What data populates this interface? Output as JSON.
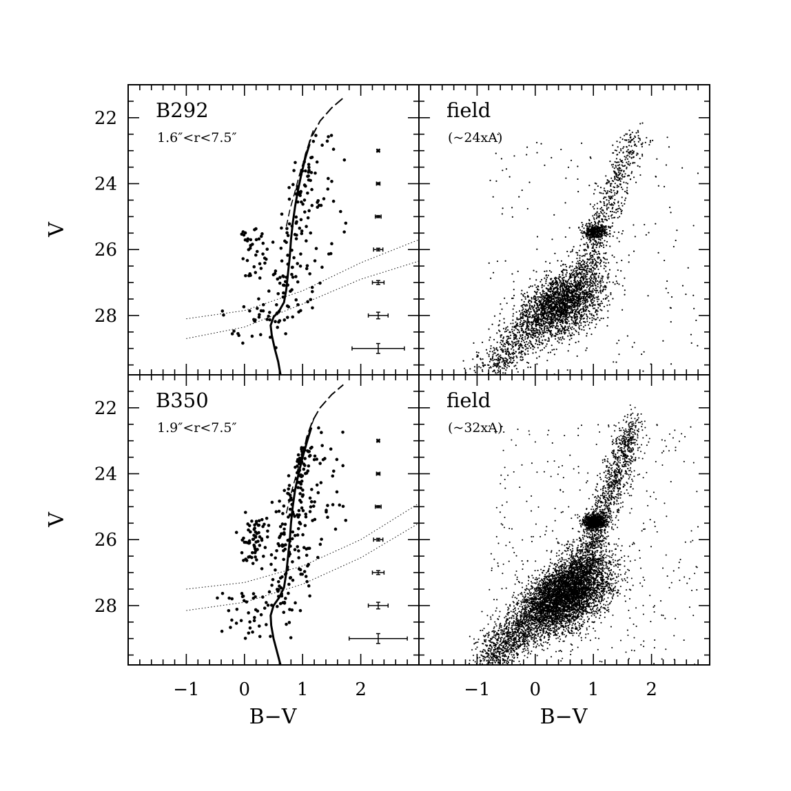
{
  "chart_data": {
    "type": "scatter",
    "xlim": [
      -2,
      3
    ],
    "ylim": [
      29.8,
      21.0
    ],
    "x_ticks": [
      -1,
      0,
      1,
      2
    ],
    "y_ticks": [
      22,
      24,
      26,
      28
    ],
    "xlabel": "B−V",
    "ylabel": "V",
    "panels": [
      {
        "id": "B292",
        "title": "B292",
        "subtitle": "1.6″<r<7.5″",
        "kind": "cluster",
        "isochrone": {
          "solid": [
            [
              0.62,
              29.8
            ],
            [
              0.58,
              29.4
            ],
            [
              0.52,
              29.0
            ],
            [
              0.47,
              28.6
            ],
            [
              0.45,
              28.3
            ],
            [
              0.5,
              28.05
            ],
            [
              0.6,
              27.85
            ],
            [
              0.68,
              27.6
            ],
            [
              0.72,
              27.2
            ],
            [
              0.75,
              26.7
            ],
            [
              0.78,
              26.2
            ],
            [
              0.8,
              25.7
            ],
            [
              0.83,
              25.2
            ],
            [
              0.87,
              24.7
            ],
            [
              0.92,
              24.2
            ],
            [
              0.98,
              23.7
            ],
            [
              1.05,
              23.2
            ],
            [
              1.12,
              22.8
            ]
          ],
          "dashed_upper": [
            [
              0.98,
              23.7
            ],
            [
              1.05,
              23.1
            ],
            [
              1.15,
              22.6
            ],
            [
              1.3,
              22.1
            ],
            [
              1.5,
              21.7
            ],
            [
              1.7,
              21.4
            ]
          ],
          "dashed_lower": [
            [
              0.72,
              25.3
            ],
            [
              0.78,
              24.8
            ],
            [
              0.86,
              24.3
            ],
            [
              0.95,
              23.7
            ],
            [
              1.04,
              23.2
            ],
            [
              1.12,
              22.7
            ],
            [
              1.2,
              22.3
            ]
          ]
        },
        "completeness_lines": [
          [
            [
              -1.0,
              28.1
            ],
            [
              0.0,
              27.85
            ],
            [
              1.0,
              27.25
            ],
            [
              2.0,
              26.4
            ],
            [
              3.0,
              25.7
            ]
          ],
          [
            [
              -1.0,
              28.7
            ],
            [
              0.0,
              28.35
            ],
            [
              1.0,
              27.65
            ],
            [
              2.0,
              26.9
            ],
            [
              3.0,
              26.35
            ]
          ]
        ],
        "error_bars": [
          {
            "v": 23.0,
            "bv_err": 0.02,
            "v_err": 0.02
          },
          {
            "v": 24.0,
            "bv_err": 0.03,
            "v_err": 0.02
          },
          {
            "v": 25.0,
            "bv_err": 0.05,
            "v_err": 0.03
          },
          {
            "v": 26.0,
            "bv_err": 0.08,
            "v_err": 0.04
          },
          {
            "v": 27.0,
            "bv_err": 0.1,
            "v_err": 0.06
          },
          {
            "v": 28.0,
            "bv_err": 0.17,
            "v_err": 0.1
          },
          {
            "v": 29.0,
            "bv_err": 0.45,
            "v_err": 0.15
          }
        ],
        "error_bar_x": 2.3,
        "stars": {
          "n": 220,
          "seed": 292
        }
      },
      {
        "id": "field1",
        "title": "field",
        "subtitle": "(~24xA)",
        "kind": "field",
        "stars": {
          "n": 4200,
          "seed": 1111
        }
      },
      {
        "id": "B350",
        "title": "B350",
        "subtitle": "1.9″<r<7.5″",
        "kind": "cluster",
        "isochrone": {
          "solid": [
            [
              0.62,
              29.8
            ],
            [
              0.56,
              29.4
            ],
            [
              0.5,
              29.0
            ],
            [
              0.46,
              28.6
            ],
            [
              0.45,
              28.3
            ],
            [
              0.5,
              28.0
            ],
            [
              0.6,
              27.75
            ],
            [
              0.68,
              27.45
            ],
            [
              0.72,
              27.0
            ],
            [
              0.75,
              26.5
            ],
            [
              0.78,
              26.0
            ],
            [
              0.8,
              25.5
            ],
            [
              0.83,
              25.0
            ],
            [
              0.87,
              24.5
            ],
            [
              0.93,
              24.0
            ],
            [
              1.0,
              23.5
            ],
            [
              1.08,
              23.0
            ],
            [
              1.15,
              22.6
            ]
          ],
          "dashed_upper": [
            [
              1.0,
              23.5
            ],
            [
              1.07,
              22.9
            ],
            [
              1.17,
              22.4
            ],
            [
              1.3,
              22.0
            ],
            [
              1.5,
              21.6
            ],
            [
              1.7,
              21.3
            ]
          ],
          "dashed_lower": [
            [
              0.72,
              25.2
            ],
            [
              0.8,
              24.6
            ],
            [
              0.88,
              24.1
            ],
            [
              0.96,
              23.6
            ],
            [
              1.05,
              23.1
            ],
            [
              1.12,
              22.7
            ],
            [
              1.2,
              22.3
            ]
          ]
        },
        "completeness_lines": [
          [
            [
              -1.0,
              27.5
            ],
            [
              0.0,
              27.3
            ],
            [
              1.0,
              26.8
            ],
            [
              2.0,
              26.0
            ],
            [
              3.0,
              24.9
            ]
          ],
          [
            [
              -1.0,
              28.15
            ],
            [
              0.0,
              27.9
            ],
            [
              1.0,
              27.35
            ],
            [
              2.0,
              26.55
            ],
            [
              3.0,
              25.5
            ]
          ]
        ],
        "error_bars": [
          {
            "v": 23.0,
            "bv_err": 0.02,
            "v_err": 0.02
          },
          {
            "v": 24.0,
            "bv_err": 0.03,
            "v_err": 0.02
          },
          {
            "v": 25.0,
            "bv_err": 0.05,
            "v_err": 0.03
          },
          {
            "v": 26.0,
            "bv_err": 0.08,
            "v_err": 0.04
          },
          {
            "v": 27.0,
            "bv_err": 0.1,
            "v_err": 0.06
          },
          {
            "v": 28.0,
            "bv_err": 0.17,
            "v_err": 0.1
          },
          {
            "v": 29.0,
            "bv_err": 0.5,
            "v_err": 0.15
          }
        ],
        "error_bar_x": 2.3,
        "stars": {
          "n": 330,
          "seed": 350
        }
      },
      {
        "id": "field2",
        "title": "field",
        "subtitle": "(~32xA)",
        "kind": "field",
        "stars": {
          "n": 9000,
          "seed": 3232
        }
      }
    ]
  }
}
